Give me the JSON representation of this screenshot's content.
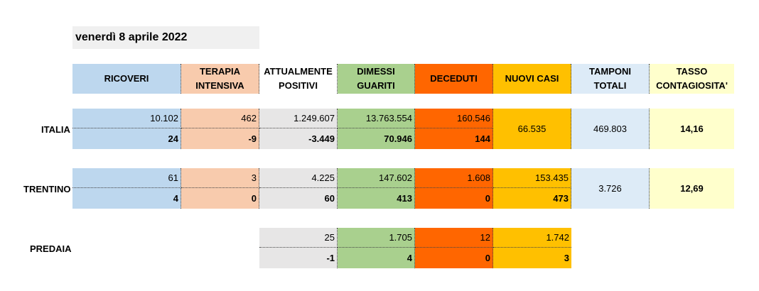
{
  "date": "venerdì 8 aprile 2022",
  "headers": {
    "ricoveri": "RICOVERI",
    "terapia_1": "TERAPIA",
    "terapia_2": "INTENSIVA",
    "attualmente_1": "ATTUALMENTE",
    "attualmente_2": "POSITIVI",
    "dimessi_1": "DIMESSI",
    "dimessi_2": "GUARITI",
    "deceduti": "DECEDUTI",
    "nuovi_casi": "NUOVI CASI",
    "tamponi_1": "TAMPONI",
    "tamponi_2": "TOTALI",
    "tasso_1": "TASSO",
    "tasso_2": "CONTAGIOSITA'"
  },
  "italia": {
    "label": "ITALIA",
    "ricoveri": "10.102",
    "ricoveri_var": "24",
    "terapia": "462",
    "terapia_var": "-9",
    "attualmente": "1.249.607",
    "attualmente_var": "-3.449",
    "dimessi": "13.763.554",
    "dimessi_var": "70.946",
    "deceduti": "160.546",
    "deceduti_var": "144",
    "nuovi_casi": "66.535",
    "tamponi": "469.803",
    "tasso": "14,16"
  },
  "trentino": {
    "label": "TRENTINO",
    "ricoveri": "61",
    "ricoveri_var": "4",
    "terapia": "3",
    "terapia_var": "0",
    "attualmente": "4.225",
    "attualmente_var": "60",
    "dimessi": "147.602",
    "dimessi_var": "413",
    "deceduti": "1.608",
    "deceduti_var": "0",
    "nuovi_casi": "153.435",
    "nuovi_casi_var": "473",
    "tamponi": "3.726",
    "tasso": "12,69"
  },
  "predaia": {
    "label": "PREDAIA",
    "attualmente": "25",
    "attualmente_var": "-1",
    "dimessi": "1.705",
    "dimessi_var": "4",
    "deceduti": "12",
    "deceduti_var": "0",
    "nuovi_casi": "1.742",
    "nuovi_casi_var": "3"
  }
}
